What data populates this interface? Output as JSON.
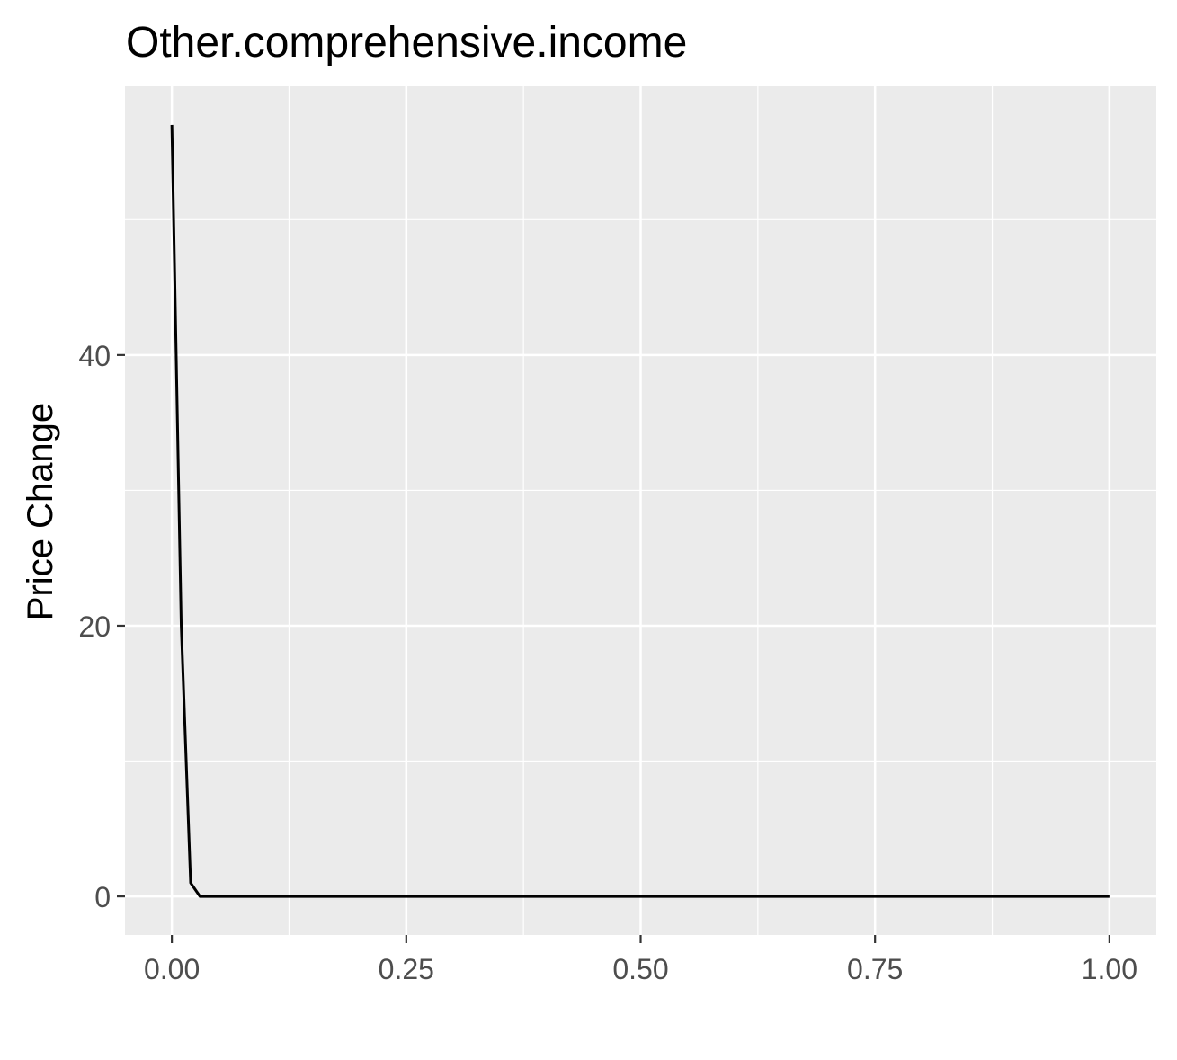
{
  "chart_data": {
    "type": "line",
    "title": "Other.comprehensive.income",
    "xlabel": "",
    "ylabel": "Price Change",
    "xlim": [
      -0.05,
      1.05
    ],
    "ylim": [
      -2.85,
      59.85
    ],
    "x_ticks": [
      0.0,
      0.25,
      0.5,
      0.75,
      1.0
    ],
    "x_tick_labels": [
      "0.00",
      "0.25",
      "0.50",
      "0.75",
      "1.00"
    ],
    "y_ticks": [
      0,
      20,
      40
    ],
    "y_tick_labels": [
      "0",
      "20",
      "40"
    ],
    "grid": true,
    "legend": "none",
    "series": [
      {
        "color": "#000000",
        "x": [
          0.0,
          0.01,
          0.02,
          0.03,
          0.04,
          0.05,
          0.1,
          0.2,
          0.3,
          0.4,
          0.5,
          0.6,
          0.7,
          0.8,
          0.9,
          1.0
        ],
        "y": [
          57.0,
          20.0,
          1.0,
          0.0,
          0.0,
          0.0,
          0.0,
          0.0,
          0.0,
          0.0,
          0.0,
          0.0,
          0.0,
          0.0,
          0.0,
          0.0
        ]
      }
    ],
    "colors": {
      "panel_background": "#EBEBEB",
      "grid_major": "#FFFFFF",
      "grid_minor": "#FFFFFF",
      "tick_text": "#4D4D4D",
      "axis_title": "#000000"
    }
  }
}
